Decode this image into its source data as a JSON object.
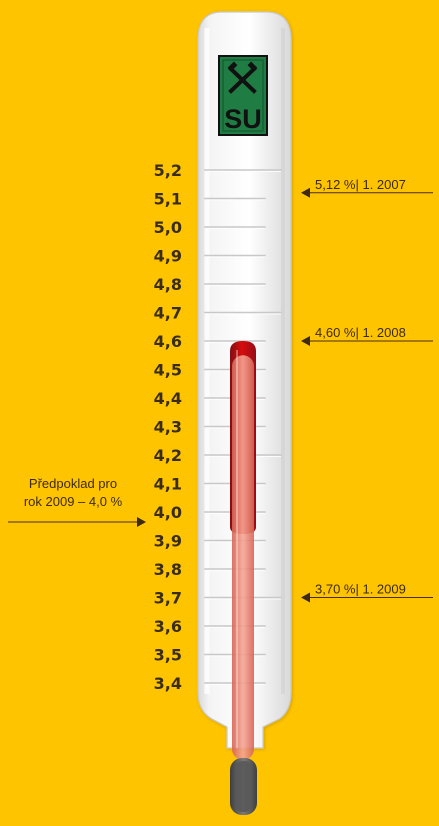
{
  "chart_data": {
    "type": "thermometer",
    "scale": {
      "min": 3.4,
      "max": 5.2,
      "step": 0.1,
      "labels": [
        "5,2",
        "5,1",
        "5,0",
        "4,9",
        "4,8",
        "4,7",
        "4,6",
        "4,5",
        "4,4",
        "4,3",
        "4,2",
        "4,1",
        "4,0",
        "3,9",
        "3,8",
        "3,7",
        "3,6",
        "3,5",
        "3,4"
      ]
    },
    "series": [
      {
        "value": 5.12,
        "label": "5,12 %| 1. 2007",
        "side": "right",
        "fill": false
      },
      {
        "value": 4.6,
        "label": "4,60 %| 1. 2008",
        "side": "right",
        "fill": "#b5000a"
      },
      {
        "value": 3.7,
        "label": "3,70 %| 1. 2009",
        "side": "right",
        "fill": "#e98a7b"
      }
    ],
    "forecast": {
      "value": 4.0,
      "label_lines": [
        "Předpoklad pro",
        "rok 2009 – 4,0 %"
      ],
      "side": "left"
    },
    "logo": {
      "text": "SU",
      "shape": "crossed-hammers",
      "background": "#1f7c43",
      "color": "#111111"
    },
    "colors": {
      "background": "#ffc400",
      "tube": "#f2f2f2",
      "tube_shade": "#d6d6d6",
      "scale": "#3a2d17",
      "line": "#4a2d1a"
    }
  }
}
